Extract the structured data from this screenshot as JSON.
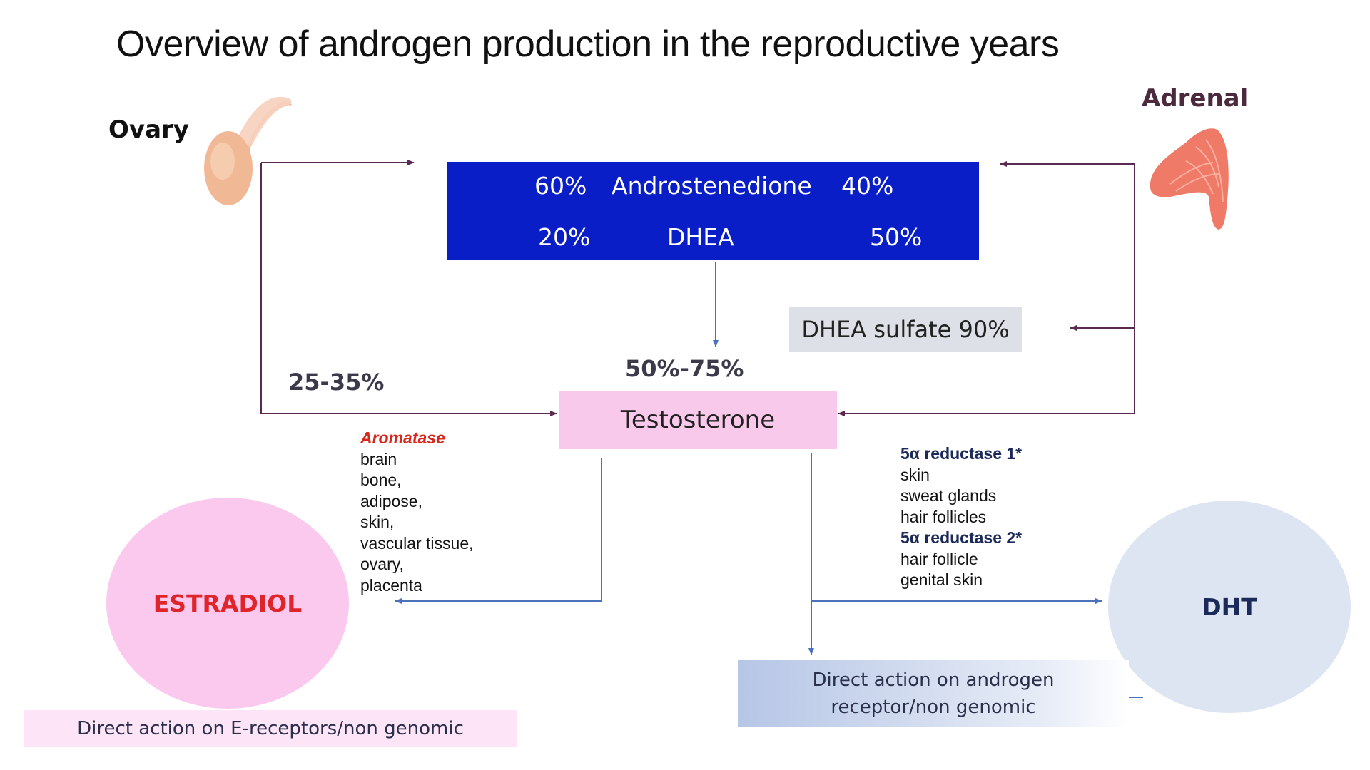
{
  "title": "Overview of androgen production in the reproductive years",
  "ovary": {
    "label": "Ovary"
  },
  "adrenal": {
    "label": "Adrenal"
  },
  "androgen_box": {
    "row1": {
      "ovary_pct": "60%",
      "name": "Androstenedione",
      "adrenal_pct": "40%"
    },
    "row2": {
      "ovary_pct": "20%",
      "name": "DHEA",
      "adrenal_pct": "50%"
    }
  },
  "dhea_sulfate": "DHEA sulfate 90%",
  "testosterone": {
    "label": "Testosterone",
    "from_ovary_pct": "25-35%",
    "from_conversion_pct": "50%-75%"
  },
  "aromatase": {
    "header": "Aromatase",
    "tissues": [
      "brain",
      "bone,",
      "adipose,",
      "skin,",
      "vascular tissue,",
      "ovary,",
      "placenta"
    ]
  },
  "reductase": {
    "type1": {
      "header": "5α reductase 1*",
      "tissues": [
        "skin",
        "sweat glands",
        "hair follicles"
      ]
    },
    "type2": {
      "header": "5α reductase 2*",
      "tissues": [
        "hair follicle",
        "genital skin"
      ]
    }
  },
  "estradiol": {
    "label": "ESTRADIOL",
    "action": "Direct action on E-receptors/non genomic"
  },
  "dht": {
    "label": "DHT"
  },
  "androgen_action": {
    "line1": "Direct action on androgen",
    "line2": "receptor/non genomic"
  },
  "colors": {
    "androgen_box": "#0a1ec8",
    "testosterone_box": "#f9c9ec",
    "estradiol_circle": "#fbc9ee",
    "dht_circle": "#dde4f2",
    "estradiol_text": "#e0242c",
    "aromatase_text": "#d8281e",
    "purple_arrows": "#5a2a52",
    "blue_arrows": "#4a72b8"
  }
}
